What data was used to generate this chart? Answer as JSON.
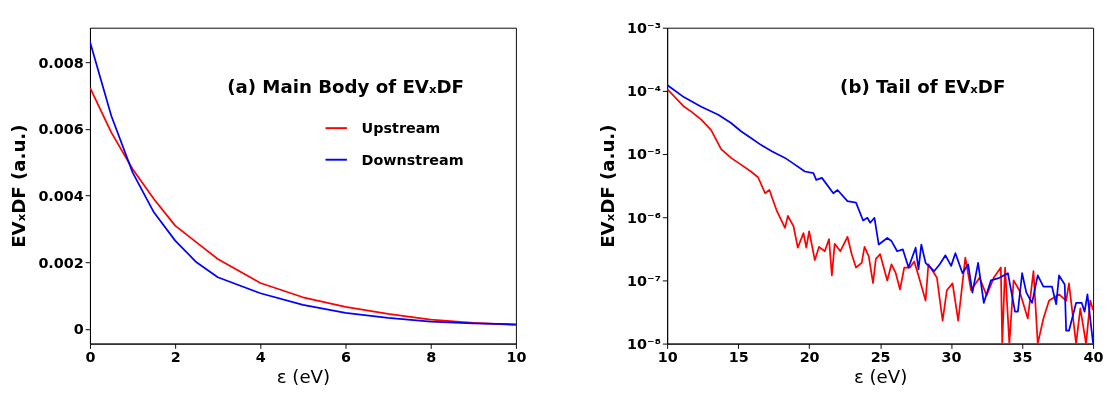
{
  "chart_data": [
    {
      "type": "line",
      "title": "(a) Main Body of EVₓDF",
      "xlabel": "ε (eV)",
      "ylabel": "EVₓDF (a.u.)",
      "x": [
        0,
        0.5,
        1,
        1.5,
        2,
        2.5,
        3,
        4,
        5,
        6,
        7,
        8,
        9,
        10
      ],
      "series": [
        {
          "name": "Upstream",
          "color": "#ff0000",
          "values": [
            0.00724,
            0.0059,
            0.0048,
            0.0039,
            0.0031,
            0.0026,
            0.0021,
            0.00138,
            0.00095,
            0.00066,
            0.00045,
            0.00028,
            0.00018,
            0.00012
          ]
        },
        {
          "name": "Downstream",
          "color": "#0000ff",
          "values": [
            0.00862,
            0.0064,
            0.0047,
            0.0035,
            0.00265,
            0.002,
            0.00155,
            0.00107,
            0.00072,
            0.00048,
            0.00033,
            0.00022,
            0.00017,
            0.00014
          ]
        }
      ],
      "xlim": [
        0,
        10
      ],
      "xticks": [
        0,
        2,
        4,
        6,
        8,
        10
      ],
      "ylim": [
        -0.00044,
        0.00904
      ],
      "yticks": [
        0,
        0.002,
        0.004,
        0.006,
        0.008
      ],
      "legend": "right",
      "grid": false,
      "line_style": "solid"
    },
    {
      "type": "line",
      "title": "(b) Tail of EVₓDF",
      "xlabel": "ε (eV)",
      "ylabel": "EVₓDF (a.u.)",
      "log": "y",
      "series": [
        {
          "name": "Upstream",
          "color": "#ff0000",
          "x": [
            10,
            11.2,
            11.7,
            12.4,
            13.1,
            13.8,
            14.5,
            15.2,
            15.9,
            16.4,
            16.9,
            17.2,
            17.7,
            18.3,
            18.5,
            18.9,
            19.2,
            19.6,
            19.8,
            20.0,
            20.4,
            20.7,
            21.1,
            21.4,
            21.6,
            21.8,
            22.2,
            22.7,
            23.0,
            23.3,
            23.7,
            23.9,
            24.2,
            24.5,
            24.7,
            25.0,
            25.5,
            25.8,
            26.1,
            26.4,
            26.7,
            27.1,
            27.4,
            27.7,
            28.2,
            28.4,
            29.0,
            29.4,
            29.7,
            30.1,
            30.5,
            31.0,
            31.4,
            32.0,
            32.5,
            33.0,
            33.5,
            33.6,
            33.8,
            34.1,
            34.4,
            34.8,
            35.4,
            35.8,
            36.1,
            36.5,
            36.9,
            37.6,
            38.1,
            38.3,
            38.8,
            39.1,
            39.5,
            39.8,
            40.0
          ],
          "values": [
            0.000107,
            5.6e-05,
            4.7e-05,
            3.5e-05,
            2.4e-05,
            1.2e-05,
            8.7e-06,
            6.8e-06,
            5.3e-06,
            4.3e-06,
            2.4e-06,
            2.7e-06,
            1.3e-06,
            6.8e-07,
            1.05e-06,
            7.2e-07,
            3.3e-07,
            5.6e-07,
            3.3e-07,
            6e-07,
            2.1e-07,
            3.4e-07,
            2.9e-07,
            4.5e-07,
            1.2e-07,
            3.8e-07,
            2.9e-07,
            4.9e-07,
            2.6e-07,
            1.6e-07,
            1.9e-07,
            3.4e-07,
            2.4e-07,
            9.1e-08,
            2.2e-07,
            2.6e-07,
            1e-07,
            1.8e-07,
            1.3e-07,
            7.2e-08,
            1.6e-07,
            1.6e-07,
            2e-07,
            1.2e-07,
            4.8e-08,
            1.8e-07,
            1.1e-07,
            2.3e-08,
            7e-08,
            9e-08,
            2.3e-08,
            2.3e-07,
            7e-08,
            1.1e-07,
            5.8e-08,
            1.1e-07,
            1.6e-07,
            1e-08,
            1.6e-07,
            1e-08,
            1e-07,
            7e-08,
            2.5e-08,
            1.4e-07,
            1e-08,
            2.5e-08,
            4.8e-08,
            6e-08,
            4.8e-08,
            9e-08,
            1e-08,
            3.6e-08,
            1e-08,
            4.8e-08,
            3.4e-08
          ]
        },
        {
          "name": "Downstream",
          "color": "#0000ff",
          "x": [
            10,
            11.2,
            12.4,
            13.6,
            14.5,
            15.2,
            15.9,
            16.6,
            17.4,
            18.3,
            19.0,
            19.7,
            20.3,
            20.5,
            20.9,
            21.7,
            22.0,
            22.7,
            23.3,
            23.8,
            24.1,
            24.3,
            24.6,
            24.9,
            25.5,
            25.8,
            26.2,
            26.6,
            27.0,
            27.5,
            27.7,
            27.9,
            28.2,
            28.8,
            29.2,
            29.6,
            30.0,
            30.3,
            30.8,
            31.2,
            31.5,
            31.9,
            32.3,
            32.8,
            33.4,
            34.0,
            34.5,
            34.7,
            35.0,
            35.3,
            35.7,
            36.1,
            36.5,
            37.1,
            37.4,
            37.6,
            38.0,
            38.1,
            38.3,
            38.8,
            39.2,
            39.4,
            39.6,
            40.0
          ],
          "values": [
            0.000124,
            7.9e-05,
            5.6e-05,
            4.2e-05,
            3.1e-05,
            2.3e-05,
            1.8e-05,
            1.4e-05,
            1.1e-05,
            8.7e-06,
            6.8e-06,
            5.3e-06,
            5e-06,
            3.9e-06,
            4.2e-06,
            2.4e-06,
            2.7e-06,
            1.8e-06,
            1.7e-06,
            8.9e-07,
            9.8e-07,
            8.2e-07,
            9.8e-07,
            3.7e-07,
            4.7e-07,
            4.2e-07,
            2.9e-07,
            3.1e-07,
            1.6e-07,
            3.3e-07,
            1.5e-07,
            3.7e-07,
            1.9e-07,
            1.4e-07,
            1.8e-07,
            2.5e-07,
            1.7e-07,
            2.7e-07,
            1.3e-07,
            1.8e-07,
            6.4e-08,
            1.9e-07,
            4.4e-08,
            1e-07,
            1.1e-07,
            1.3e-07,
            3.2e-08,
            3.2e-08,
            1.3e-07,
            6.4e-08,
            4.4e-08,
            1.2e-07,
            8e-08,
            8e-08,
            4.2e-08,
            1.2e-07,
            8.6e-08,
            1.6e-08,
            1.6e-08,
            4.4e-08,
            4.4e-08,
            3.2e-08,
            6e-08,
            1e-08
          ]
        }
      ],
      "xlim": [
        10,
        40
      ],
      "xticks": [
        10,
        15,
        20,
        25,
        30,
        35,
        40
      ],
      "ylim": [
        1e-08,
        0.001
      ],
      "yticks": [
        {
          "value": 1e-08,
          "label": "10⁻⁸"
        },
        {
          "value": 1e-07,
          "label": "10⁻⁷"
        },
        {
          "value": 1e-06,
          "label": "10⁻⁶"
        },
        {
          "value": 1e-05,
          "label": "10⁻⁵"
        },
        {
          "value": 0.0001,
          "label": "10⁻⁴"
        },
        {
          "value": 0.001,
          "label": "10⁻³"
        }
      ],
      "legend": "right",
      "grid": false,
      "line_style": "solid"
    }
  ]
}
